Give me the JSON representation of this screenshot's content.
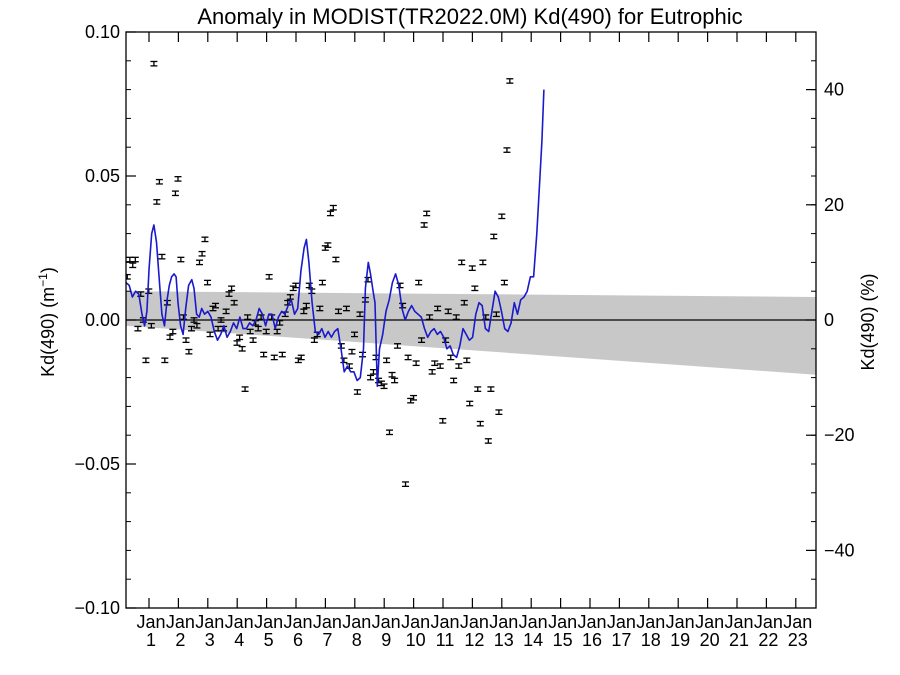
{
  "chart_data": {
    "type": "scatter",
    "title": "Anomaly in MODIST(TR2022.0M) Kd(490) for Eutrophic",
    "ylabel_left": {
      "base": "Kd(490) (m",
      "sup": "−1",
      "close": ")"
    },
    "ylabel_right": "Kd(490) (%)",
    "x_range": [
      2002.5,
      2024.0
    ],
    "ylim_left": [
      -0.1,
      0.1
    ],
    "ylim_right": [
      -50,
      50
    ],
    "y_ticks_left": [
      {
        "value": 0.1,
        "label": "0.10"
      },
      {
        "value": 0.05,
        "label": "0.05"
      },
      {
        "value": 0.0,
        "label": "0.00"
      },
      {
        "value": -0.05,
        "label": "−0.05"
      },
      {
        "value": -0.1,
        "label": "−0.10"
      }
    ],
    "y_ticks_right": [
      {
        "value": 40,
        "label": "40"
      },
      {
        "value": 20,
        "label": "20"
      },
      {
        "value": 0,
        "label": "0"
      },
      {
        "value": -20,
        "label": "−20"
      },
      {
        "value": -40,
        "label": "−40"
      }
    ],
    "x_ticks": [
      {
        "x": 2003.0,
        "month": "Jan",
        "year": "1"
      },
      {
        "x": 2004.0,
        "month": "Jan",
        "year": "2"
      },
      {
        "x": 2005.0,
        "month": "Jan",
        "year": "3"
      },
      {
        "x": 2006.0,
        "month": "Jan",
        "year": "4"
      },
      {
        "x": 2007.0,
        "month": "Jan",
        "year": "5"
      },
      {
        "x": 2008.0,
        "month": "Jan",
        "year": "6"
      },
      {
        "x": 2009.0,
        "month": "Jan",
        "year": "7"
      },
      {
        "x": 2010.0,
        "month": "Jan",
        "year": "8"
      },
      {
        "x": 2011.0,
        "month": "Jan",
        "year": "9"
      },
      {
        "x": 2012.0,
        "month": "Jan",
        "year": "10"
      },
      {
        "x": 2013.0,
        "month": "Jan",
        "year": "11"
      },
      {
        "x": 2014.0,
        "month": "Jan",
        "year": "12"
      },
      {
        "x": 2015.0,
        "month": "Jan",
        "year": "13"
      },
      {
        "x": 2016.0,
        "month": "Jan",
        "year": "14"
      },
      {
        "x": 2017.0,
        "month": "Jan",
        "year": "15"
      },
      {
        "x": 2018.0,
        "month": "Jan",
        "year": "16"
      },
      {
        "x": 2019.0,
        "month": "Jan",
        "year": "17"
      },
      {
        "x": 2020.0,
        "month": "Jan",
        "year": "18"
      },
      {
        "x": 2021.0,
        "month": "Jan",
        "year": "19"
      },
      {
        "x": 2022.0,
        "month": "Jan",
        "year": "20"
      },
      {
        "x": 2023.0,
        "month": "Jan",
        "year": "21"
      },
      {
        "x": 2024.0,
        "month": "Jan",
        "year": "22"
      },
      {
        "x": 2025.0,
        "month": "Jan",
        "year": "23"
      }
    ],
    "zero_line": 0.0,
    "confidence_band": {
      "start": {
        "x": 2002.5,
        "upper": 0.01,
        "lower": -0.002
      },
      "end": {
        "x": 2024.0,
        "upper": 0.008,
        "lower": -0.019
      }
    },
    "points": [
      {
        "x": 2002.54,
        "y": 0.015
      },
      {
        "x": 2002.62,
        "y": 0.021
      },
      {
        "x": 2002.71,
        "y": 0.019
      },
      {
        "x": 2002.79,
        "y": 0.021
      },
      {
        "x": 2002.87,
        "y": -0.003
      },
      {
        "x": 2002.96,
        "y": 0.009
      },
      {
        "x": 2003.04,
        "y": 0.0
      },
      {
        "x": 2003.12,
        "y": -0.014
      },
      {
        "x": 2003.21,
        "y": 0.01
      },
      {
        "x": 2003.29,
        "y": -0.002
      },
      {
        "x": 2003.37,
        "y": 0.089
      },
      {
        "x": 2003.46,
        "y": 0.041
      },
      {
        "x": 2003.54,
        "y": 0.048
      },
      {
        "x": 2003.62,
        "y": 0.022
      },
      {
        "x": 2003.71,
        "y": -0.014
      },
      {
        "x": 2003.79,
        "y": 0.006
      },
      {
        "x": 2003.87,
        "y": -0.006
      },
      {
        "x": 2003.96,
        "y": -0.004
      },
      {
        "x": 2004.04,
        "y": 0.044
      },
      {
        "x": 2004.12,
        "y": 0.049
      },
      {
        "x": 2004.21,
        "y": 0.021
      },
      {
        "x": 2004.29,
        "y": 0.001
      },
      {
        "x": 2004.37,
        "y": -0.007
      },
      {
        "x": 2004.46,
        "y": -0.011
      },
      {
        "x": 2004.54,
        "y": -0.003
      },
      {
        "x": 2004.62,
        "y": 0.0
      },
      {
        "x": 2004.71,
        "y": -0.002
      },
      {
        "x": 2004.79,
        "y": 0.02
      },
      {
        "x": 2004.87,
        "y": 0.023
      },
      {
        "x": 2004.96,
        "y": 0.028
      },
      {
        "x": 2005.04,
        "y": 0.013
      },
      {
        "x": 2005.12,
        "y": -0.005
      },
      {
        "x": 2005.21,
        "y": 0.004
      },
      {
        "x": 2005.29,
        "y": 0.005
      },
      {
        "x": 2005.37,
        "y": -0.003
      },
      {
        "x": 2005.46,
        "y": 0.0
      },
      {
        "x": 2005.54,
        "y": -0.003
      },
      {
        "x": 2005.62,
        "y": 0.003
      },
      {
        "x": 2005.71,
        "y": 0.009
      },
      {
        "x": 2005.79,
        "y": 0.011
      },
      {
        "x": 2005.87,
        "y": 0.006
      },
      {
        "x": 2005.96,
        "y": -0.008
      },
      {
        "x": 2006.04,
        "y": -0.006
      },
      {
        "x": 2006.12,
        "y": -0.01
      },
      {
        "x": 2006.21,
        "y": -0.024
      },
      {
        "x": 2006.29,
        "y": 0.001
      },
      {
        "x": 2006.37,
        "y": -0.004
      },
      {
        "x": 2006.46,
        "y": -0.007
      },
      {
        "x": 2006.54,
        "y": -0.001
      },
      {
        "x": 2006.62,
        "y": -0.003
      },
      {
        "x": 2006.71,
        "y": 0.001
      },
      {
        "x": 2006.79,
        "y": -0.012
      },
      {
        "x": 2006.87,
        "y": -0.004
      },
      {
        "x": 2006.96,
        "y": 0.015
      },
      {
        "x": 2007.04,
        "y": 0.001
      },
      {
        "x": 2007.12,
        "y": -0.013
      },
      {
        "x": 2007.21,
        "y": -0.004
      },
      {
        "x": 2007.29,
        "y": -0.001
      },
      {
        "x": 2007.37,
        "y": -0.012
      },
      {
        "x": 2007.46,
        "y": 0.002
      },
      {
        "x": 2007.54,
        "y": 0.006
      },
      {
        "x": 2007.62,
        "y": 0.008
      },
      {
        "x": 2007.71,
        "y": 0.011
      },
      {
        "x": 2007.79,
        "y": 0.012
      },
      {
        "x": 2007.87,
        "y": -0.014
      },
      {
        "x": 2007.96,
        "y": -0.013
      },
      {
        "x": 2008.04,
        "y": 0.003
      },
      {
        "x": 2008.12,
        "y": 0.005
      },
      {
        "x": 2008.21,
        "y": 0.012
      },
      {
        "x": 2008.29,
        "y": 0.01
      },
      {
        "x": 2008.37,
        "y": -0.007
      },
      {
        "x": 2008.46,
        "y": -0.005
      },
      {
        "x": 2008.54,
        "y": 0.004
      },
      {
        "x": 2008.62,
        "y": 0.013
      },
      {
        "x": 2008.71,
        "y": 0.025
      },
      {
        "x": 2008.79,
        "y": 0.026
      },
      {
        "x": 2008.87,
        "y": 0.037
      },
      {
        "x": 2008.96,
        "y": 0.039
      },
      {
        "x": 2009.04,
        "y": 0.021
      },
      {
        "x": 2009.12,
        "y": 0.003
      },
      {
        "x": 2009.21,
        "y": -0.009
      },
      {
        "x": 2009.29,
        "y": -0.014
      },
      {
        "x": 2009.37,
        "y": 0.004
      },
      {
        "x": 2009.46,
        "y": -0.016
      },
      {
        "x": 2009.54,
        "y": -0.011
      },
      {
        "x": 2009.62,
        "y": -0.005
      },
      {
        "x": 2009.71,
        "y": -0.025
      },
      {
        "x": 2009.79,
        "y": 0.002
      },
      {
        "x": 2009.87,
        "y": -0.012
      },
      {
        "x": 2009.96,
        "y": 0.007
      },
      {
        "x": 2010.04,
        "y": 0.014
      },
      {
        "x": 2010.12,
        "y": -0.02
      },
      {
        "x": 2010.21,
        "y": -0.018
      },
      {
        "x": 2010.29,
        "y": -0.013
      },
      {
        "x": 2010.37,
        "y": -0.021
      },
      {
        "x": 2010.46,
        "y": -0.022
      },
      {
        "x": 2010.54,
        "y": -0.023
      },
      {
        "x": 2010.62,
        "y": -0.014
      },
      {
        "x": 2010.71,
        "y": -0.039
      },
      {
        "x": 2010.79,
        "y": -0.019
      },
      {
        "x": 2010.87,
        "y": -0.021
      },
      {
        "x": 2010.96,
        "y": -0.009
      },
      {
        "x": 2011.04,
        "y": 0.012
      },
      {
        "x": 2011.12,
        "y": 0.005
      },
      {
        "x": 2011.21,
        "y": -0.057
      },
      {
        "x": 2011.29,
        "y": -0.013
      },
      {
        "x": 2011.37,
        "y": -0.028
      },
      {
        "x": 2011.46,
        "y": -0.027
      },
      {
        "x": 2011.54,
        "y": -0.015
      },
      {
        "x": 2011.62,
        "y": 0.013
      },
      {
        "x": 2011.71,
        "y": -0.007
      },
      {
        "x": 2011.79,
        "y": 0.033
      },
      {
        "x": 2011.87,
        "y": 0.037
      },
      {
        "x": 2011.96,
        "y": 0.001
      },
      {
        "x": 2012.04,
        "y": -0.018
      },
      {
        "x": 2012.12,
        "y": -0.015
      },
      {
        "x": 2012.21,
        "y": 0.004
      },
      {
        "x": 2012.29,
        "y": -0.016
      },
      {
        "x": 2012.37,
        "y": -0.035
      },
      {
        "x": 2012.46,
        "y": -0.007
      },
      {
        "x": 2012.54,
        "y": 0.003
      },
      {
        "x": 2012.62,
        "y": -0.013
      },
      {
        "x": 2012.71,
        "y": -0.021
      },
      {
        "x": 2012.79,
        "y": 0.001
      },
      {
        "x": 2012.87,
        "y": -0.016
      },
      {
        "x": 2012.96,
        "y": 0.02
      },
      {
        "x": 2013.04,
        "y": 0.006
      },
      {
        "x": 2013.12,
        "y": -0.014
      },
      {
        "x": 2013.21,
        "y": -0.029
      },
      {
        "x": 2013.29,
        "y": 0.018
      },
      {
        "x": 2013.37,
        "y": 0.011
      },
      {
        "x": 2013.46,
        "y": -0.024
      },
      {
        "x": 2013.54,
        "y": -0.036
      },
      {
        "x": 2013.62,
        "y": 0.02
      },
      {
        "x": 2013.71,
        "y": 0.001
      },
      {
        "x": 2013.79,
        "y": -0.042
      },
      {
        "x": 2013.87,
        "y": -0.024
      },
      {
        "x": 2013.96,
        "y": 0.029
      },
      {
        "x": 2014.04,
        "y": 0.002
      },
      {
        "x": 2014.12,
        "y": -0.032
      },
      {
        "x": 2014.21,
        "y": 0.036
      },
      {
        "x": 2014.29,
        "y": 0.013
      },
      {
        "x": 2014.37,
        "y": 0.059
      },
      {
        "x": 2014.46,
        "y": 0.083
      }
    ],
    "smoothed_line": [
      [
        2002.5,
        0.013
      ],
      [
        2002.6,
        0.012
      ],
      [
        2002.7,
        0.008
      ],
      [
        2002.8,
        0.01
      ],
      [
        2002.9,
        0.009
      ],
      [
        2003.0,
        0.002
      ],
      [
        2003.08,
        -0.002
      ],
      [
        2003.15,
        0.003
      ],
      [
        2003.22,
        0.018
      ],
      [
        2003.3,
        0.03
      ],
      [
        2003.37,
        0.033
      ],
      [
        2003.45,
        0.027
      ],
      [
        2003.55,
        0.012
      ],
      [
        2003.62,
        0.002
      ],
      [
        2003.7,
        -0.002
      ],
      [
        2003.78,
        0.007
      ],
      [
        2003.85,
        0.012
      ],
      [
        2003.92,
        0.015
      ],
      [
        2004.0,
        0.016
      ],
      [
        2004.06,
        0.015
      ],
      [
        2004.12,
        0.006
      ],
      [
        2004.2,
        -0.002
      ],
      [
        2004.28,
        -0.005
      ],
      [
        2004.36,
        0.004
      ],
      [
        2004.45,
        0.012
      ],
      [
        2004.55,
        0.014
      ],
      [
        2004.62,
        0.011
      ],
      [
        2004.7,
        0.002
      ],
      [
        2004.78,
        0.001
      ],
      [
        2004.86,
        0.004
      ],
      [
        2004.95,
        0.002
      ],
      [
        2005.05,
        0.003
      ],
      [
        2005.15,
        0.001
      ],
      [
        2005.25,
        -0.004
      ],
      [
        2005.35,
        -0.007
      ],
      [
        2005.45,
        -0.005
      ],
      [
        2005.55,
        -0.002
      ],
      [
        2005.65,
        -0.006
      ],
      [
        2005.75,
        -0.004
      ],
      [
        2005.85,
        -0.001
      ],
      [
        2005.95,
        -0.003
      ],
      [
        2006.05,
        0.001
      ],
      [
        2006.15,
        -0.003
      ],
      [
        2006.25,
        -0.003
      ],
      [
        2006.35,
        -0.001
      ],
      [
        2006.45,
        -0.002
      ],
      [
        2006.55,
        0.0
      ],
      [
        2006.65,
        0.004
      ],
      [
        2006.75,
        0.002
      ],
      [
        2006.85,
        -0.002
      ],
      [
        2006.95,
        0.002
      ],
      [
        2007.05,
        0.002
      ],
      [
        2007.15,
        -0.003
      ],
      [
        2007.25,
        0.001
      ],
      [
        2007.35,
        0.003
      ],
      [
        2007.45,
        0.002
      ],
      [
        2007.55,
        0.005
      ],
      [
        2007.65,
        0.007
      ],
      [
        2007.75,
        0.002
      ],
      [
        2007.85,
        0.004
      ],
      [
        2007.95,
        0.017
      ],
      [
        2008.05,
        0.025
      ],
      [
        2008.12,
        0.028
      ],
      [
        2008.2,
        0.02
      ],
      [
        2008.3,
        0.006
      ],
      [
        2008.4,
        -0.004
      ],
      [
        2008.5,
        -0.005
      ],
      [
        2008.6,
        -0.003
      ],
      [
        2008.7,
        -0.006
      ],
      [
        2008.8,
        -0.004
      ],
      [
        2008.9,
        -0.006
      ],
      [
        2009.0,
        -0.004
      ],
      [
        2009.1,
        -0.003
      ],
      [
        2009.2,
        -0.01
      ],
      [
        2009.3,
        -0.018
      ],
      [
        2009.4,
        -0.016
      ],
      [
        2009.5,
        -0.018
      ],
      [
        2009.6,
        -0.018
      ],
      [
        2009.7,
        -0.021
      ],
      [
        2009.8,
        -0.02
      ],
      [
        2009.9,
        -0.01
      ],
      [
        2009.96,
        0.011
      ],
      [
        2010.05,
        0.02
      ],
      [
        2010.12,
        0.016
      ],
      [
        2010.2,
        0.01
      ],
      [
        2010.26,
        0.006
      ],
      [
        2010.33,
        -0.023
      ],
      [
        2010.4,
        -0.01
      ],
      [
        2010.5,
        -0.005
      ],
      [
        2010.6,
        0.003
      ],
      [
        2010.7,
        0.007
      ],
      [
        2010.8,
        0.013
      ],
      [
        2010.9,
        0.016
      ],
      [
        2011.0,
        0.012
      ],
      [
        2011.1,
        0.004
      ],
      [
        2011.2,
        0.0
      ],
      [
        2011.3,
        0.003
      ],
      [
        2011.4,
        0.005
      ],
      [
        2011.5,
        0.003
      ],
      [
        2011.6,
        0.002
      ],
      [
        2011.7,
        0.001
      ],
      [
        2011.8,
        -0.003
      ],
      [
        2011.9,
        -0.006
      ],
      [
        2012.0,
        -0.004
      ],
      [
        2012.1,
        -0.003
      ],
      [
        2012.2,
        -0.005
      ],
      [
        2012.3,
        -0.004
      ],
      [
        2012.4,
        -0.006
      ],
      [
        2012.5,
        -0.01
      ],
      [
        2012.6,
        -0.009
      ],
      [
        2012.7,
        -0.012
      ],
      [
        2012.8,
        -0.013
      ],
      [
        2012.9,
        -0.009
      ],
      [
        2013.0,
        -0.003
      ],
      [
        2013.1,
        -0.005
      ],
      [
        2013.2,
        -0.007
      ],
      [
        2013.3,
        -0.006
      ],
      [
        2013.4,
        0.002
      ],
      [
        2013.5,
        0.006
      ],
      [
        2013.6,
        0.005
      ],
      [
        2013.7,
        -0.003
      ],
      [
        2013.8,
        -0.004
      ],
      [
        2013.9,
        0.003
      ],
      [
        2014.0,
        0.01
      ],
      [
        2014.1,
        0.008
      ],
      [
        2014.2,
        0.003
      ],
      [
        2014.3,
        -0.003
      ],
      [
        2014.4,
        -0.004
      ],
      [
        2014.5,
        -0.001
      ],
      [
        2014.6,
        0.006
      ],
      [
        2014.7,
        0.002
      ],
      [
        2014.8,
        0.007
      ],
      [
        2014.9,
        0.008
      ],
      [
        2015.0,
        0.01
      ],
      [
        2015.1,
        0.015
      ],
      [
        2015.2,
        0.015
      ],
      [
        2015.3,
        0.03
      ],
      [
        2015.4,
        0.05
      ],
      [
        2015.46,
        0.062
      ],
      [
        2015.52,
        0.08
      ]
    ],
    "styles": {
      "line_color": "#1a1acc",
      "band_color": "#c8c8c8",
      "point_color": "#000000",
      "axis_color": "#000000"
    }
  }
}
